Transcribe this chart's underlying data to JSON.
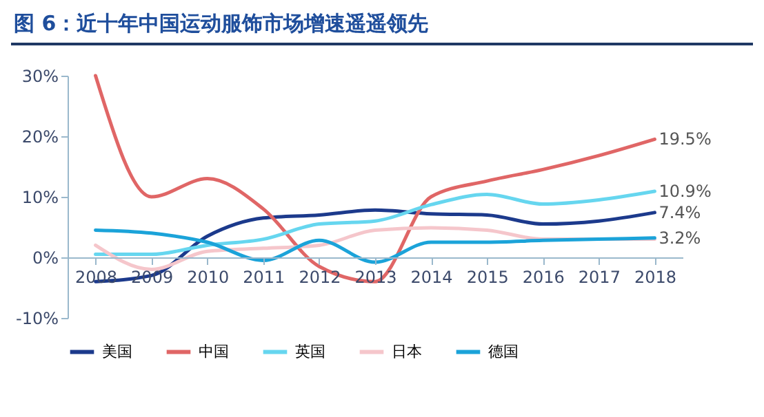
{
  "chart_data": {
    "type": "line",
    "title": "图 6：近十年中国运动服饰市场增速遥遥领先",
    "categories": [
      "2008",
      "2009",
      "2010",
      "2011",
      "2012",
      "2013",
      "2014",
      "2015",
      "2016",
      "2017",
      "2018"
    ],
    "series": [
      {
        "name": "美国",
        "color": "#1c3a8c",
        "values": [
          -4,
          -3,
          3.5,
          6.5,
          7,
          7.8,
          7.2,
          7,
          5.5,
          6,
          7.4
        ],
        "value_labels": [
          null,
          null,
          null,
          null,
          null,
          null,
          null,
          null,
          null,
          null,
          "7.4%"
        ]
      },
      {
        "name": "中国",
        "color": "#e06666",
        "values": [
          30,
          10,
          13,
          8,
          -1.5,
          -4,
          10,
          12.6,
          14.5,
          16.8,
          19.5
        ],
        "value_labels": [
          null,
          null,
          null,
          null,
          null,
          null,
          null,
          null,
          null,
          null,
          "19.5%"
        ]
      },
      {
        "name": "英国",
        "color": "#66d6ef",
        "values": [
          0.5,
          0.5,
          2,
          3,
          5.5,
          6,
          8.7,
          10.4,
          8.8,
          9.5,
          10.9
        ],
        "value_labels": [
          null,
          null,
          null,
          null,
          null,
          null,
          null,
          null,
          null,
          null,
          "10.9%"
        ]
      },
      {
        "name": "日本",
        "color": "#f5c6cb",
        "values": [
          2,
          -2,
          1,
          1.5,
          2,
          4.5,
          4.9,
          4.5,
          3,
          3,
          3
        ],
        "value_labels": [
          null,
          null,
          null,
          null,
          null,
          null,
          null,
          null,
          null,
          null,
          null
        ]
      },
      {
        "name": "德国",
        "color": "#1ba3d9",
        "values": [
          4.5,
          4,
          2.5,
          -0.5,
          2.8,
          -0.8,
          2.5,
          2.5,
          2.8,
          3,
          3.2
        ],
        "value_labels": [
          null,
          null,
          null,
          null,
          null,
          null,
          null,
          null,
          null,
          null,
          "3.2%"
        ]
      }
    ],
    "ylim": [
      -10,
      30
    ],
    "yticks": [
      {
        "value": -10,
        "label": "-10%"
      },
      {
        "value": 0,
        "label": "0%"
      },
      {
        "value": 10,
        "label": "10%"
      },
      {
        "value": 20,
        "label": "20%"
      },
      {
        "value": 30,
        "label": "30%"
      }
    ],
    "legend": "bottom"
  }
}
